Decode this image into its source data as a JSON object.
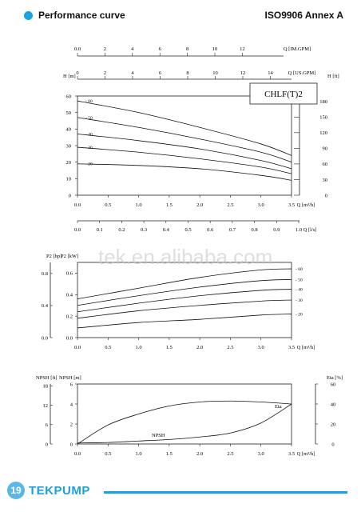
{
  "header": {
    "title": "Performance curve",
    "standard": "ISO9906 Annex A"
  },
  "watermark": "tek.en.alibaba.com",
  "footer": {
    "page": "19",
    "brand": "TEKPUMP"
  },
  "chart_data": [
    {
      "type": "line",
      "name": "head-curve",
      "model": "CHLF(T)2",
      "x_label": "Q [m³/h]",
      "x_ticks": [
        "0.0",
        "0.5",
        "1.0",
        "1.5",
        "2.0",
        "2.5",
        "3.0",
        "3.5"
      ],
      "xlim": [
        0,
        3.5
      ],
      "y_left_label": "H [m]",
      "y_left_ticks": [
        "0",
        "10",
        "20",
        "30",
        "40",
        "50",
        "60"
      ],
      "ylim": [
        0,
        60
      ],
      "y_right_label": "H [ft]",
      "y_right_ticks": [
        "0",
        "30",
        "60",
        "90",
        "120",
        "150",
        "180"
      ],
      "top_axis_1": {
        "label": "Q [IM.GPM]",
        "ticks": [
          "0.0",
          "2",
          "4",
          "6",
          "8",
          "10",
          "12"
        ]
      },
      "top_axis_2": {
        "label": "Q [US.GPM]",
        "ticks": [
          "0",
          "2",
          "4",
          "6",
          "8",
          "10",
          "12",
          "14"
        ]
      },
      "bottom_axis_2": {
        "label": "Q [l/s]",
        "ticks": [
          "0.0",
          "0.1",
          "0.2",
          "0.3",
          "0.4",
          "0.5",
          "0.6",
          "0.7",
          "0.8",
          "0.9",
          "1.0"
        ]
      },
      "series": [
        {
          "name": "60",
          "x": [
            0,
            1,
            2,
            3,
            3.5
          ],
          "y": [
            57,
            50,
            41,
            31,
            24
          ]
        },
        {
          "name": "50",
          "x": [
            0,
            1,
            2,
            3,
            3.5
          ],
          "y": [
            47,
            41,
            34,
            26,
            20
          ]
        },
        {
          "name": "40",
          "x": [
            0,
            1,
            2,
            3,
            3.5
          ],
          "y": [
            37,
            33,
            28,
            21,
            16
          ]
        },
        {
          "name": "30",
          "x": [
            0,
            1,
            2,
            3,
            3.5
          ],
          "y": [
            29,
            26,
            22,
            17,
            13
          ]
        },
        {
          "name": "20",
          "x": [
            0,
            1,
            2,
            3,
            3.5
          ],
          "y": [
            19,
            18,
            16,
            12,
            9
          ]
        }
      ]
    },
    {
      "type": "line",
      "name": "power-curve",
      "x_ticks": [
        "0.0",
        "0.5",
        "1.0",
        "1.5",
        "2.0",
        "2.5",
        "3.0",
        "3.5"
      ],
      "x_label": "Q [m³/h]",
      "xlim": [
        0,
        3.5
      ],
      "y_left_label": "P2 [hp]",
      "y_left_ticks": [
        "0.0",
        "0.4",
        "0.8"
      ],
      "y_left2_label": "P2 [kW]",
      "y_left2_ticks": [
        "0.0",
        "0.2",
        "0.4",
        "0.6"
      ],
      "ylim": [
        0,
        0.7
      ],
      "series": [
        {
          "name": "60",
          "x": [
            0,
            1,
            2,
            3,
            3.5
          ],
          "y": [
            0.36,
            0.46,
            0.56,
            0.63,
            0.64
          ]
        },
        {
          "name": "50",
          "x": [
            0,
            1,
            2,
            3,
            3.5
          ],
          "y": [
            0.3,
            0.39,
            0.47,
            0.53,
            0.54
          ]
        },
        {
          "name": "40",
          "x": [
            0,
            1,
            2,
            3,
            3.5
          ],
          "y": [
            0.24,
            0.32,
            0.39,
            0.44,
            0.45
          ]
        },
        {
          "name": "30",
          "x": [
            0,
            1,
            2,
            3,
            3.5
          ],
          "y": [
            0.18,
            0.25,
            0.3,
            0.34,
            0.35
          ]
        },
        {
          "name": "20",
          "x": [
            0,
            1,
            2,
            3,
            3.5
          ],
          "y": [
            0.09,
            0.14,
            0.17,
            0.21,
            0.22
          ]
        }
      ]
    },
    {
      "type": "line",
      "name": "npsh-eta-curve",
      "x_ticks": [
        "0.0",
        "0.5",
        "1.0",
        "1.5",
        "2.0",
        "2.5",
        "3.0",
        "3.5"
      ],
      "x_label": "Q [m³/h]",
      "xlim": [
        0,
        3.5
      ],
      "y_left_label": "NPSH [ft]",
      "y_left_ticks": [
        "0",
        "6",
        "12",
        "18"
      ],
      "y_left2_label": "NPSH [m]",
      "y_left2_ticks": [
        "0",
        "2",
        "4",
        "6"
      ],
      "ylim_m": [
        0,
        6
      ],
      "y_right_label": "Eta [%]",
      "y_right_ticks": [
        "0",
        "20",
        "40",
        "60"
      ],
      "ylim_eta": [
        0,
        60
      ],
      "series": [
        {
          "name": "Eta",
          "axis": "right",
          "x": [
            0,
            0.5,
            1,
            1.5,
            2,
            2.5,
            3,
            3.5
          ],
          "y": [
            0,
            19,
            30,
            38,
            42,
            43,
            42,
            40
          ]
        },
        {
          "name": "NPSH",
          "axis": "left",
          "x": [
            0,
            0.5,
            1,
            1.5,
            2,
            2.5,
            3,
            3.5
          ],
          "y": [
            0.1,
            0.15,
            0.3,
            0.45,
            0.7,
            1.1,
            2.1,
            4.0
          ]
        }
      ]
    }
  ]
}
